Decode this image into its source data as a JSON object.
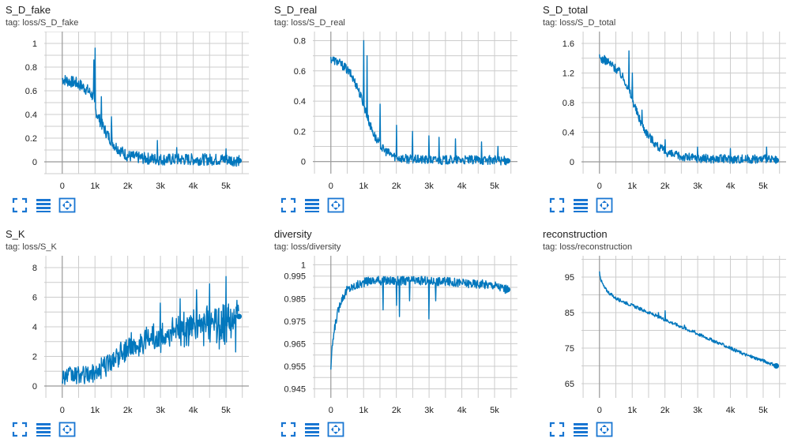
{
  "colors": {
    "line": "#0277bd",
    "grid": "#cccccc",
    "axis": "#999999",
    "tick_text": "#212121",
    "icon": "#1976d2"
  },
  "toolbar_icons": [
    "fullscreen-icon",
    "data-table-icon",
    "fit-domain-icon"
  ],
  "chart_data": [
    {
      "type": "line",
      "title": "S_D_fake",
      "tag": "tag: loss/S_D_fake",
      "xlabel": "",
      "ylabel": "",
      "x_ticks": [
        0,
        1000,
        2000,
        3000,
        4000,
        5000
      ],
      "x_tick_labels": [
        "0",
        "1k",
        "2k",
        "3k",
        "4k",
        "5k"
      ],
      "y_ticks": [
        0,
        0.2,
        0.4,
        0.6,
        0.8,
        1
      ],
      "y_tick_labels": [
        "0",
        "0.2",
        "0.4",
        "0.6",
        "0.8",
        "1"
      ],
      "xlim": [
        -550,
        5700
      ],
      "ylim": [
        -0.1,
        1.1
      ],
      "grid": true,
      "x": [
        0,
        200,
        400,
        600,
        800,
        950,
        1000,
        1100,
        1200,
        1400,
        1600,
        1800,
        2000,
        2200,
        2500,
        3000,
        3500,
        4000,
        4500,
        5000,
        5400
      ],
      "values": [
        0.7,
        0.68,
        0.67,
        0.64,
        0.6,
        0.55,
        0.45,
        0.38,
        0.32,
        0.22,
        0.14,
        0.09,
        0.05,
        0.04,
        0.03,
        0.02,
        0.02,
        0.02,
        0.02,
        0.02,
        0.01
      ],
      "noise": 0.05,
      "spikes": [
        [
          1000,
          0.96
        ],
        [
          960,
          0.86
        ],
        [
          1200,
          0.55
        ],
        [
          1500,
          0.38
        ],
        [
          2900,
          0.18
        ],
        [
          3500,
          0.12
        ],
        [
          5000,
          0.11
        ]
      ]
    },
    {
      "type": "line",
      "title": "S_D_real",
      "tag": "tag: loss/S_D_real",
      "xlabel": "",
      "ylabel": "",
      "x_ticks": [
        0,
        1000,
        2000,
        3000,
        4000,
        5000
      ],
      "x_tick_labels": [
        "0",
        "1k",
        "2k",
        "3k",
        "4k",
        "5k"
      ],
      "y_ticks": [
        0,
        0.2,
        0.4,
        0.6,
        0.8
      ],
      "y_tick_labels": [
        "0",
        "0.2",
        "0.4",
        "0.6",
        "0.8"
      ],
      "xlim": [
        -550,
        5700
      ],
      "ylim": [
        -0.08,
        0.86
      ],
      "grid": true,
      "x": [
        0,
        200,
        400,
        600,
        800,
        1000,
        1200,
        1400,
        1600,
        1800,
        2000,
        2200,
        2500,
        3000,
        3500,
        4000,
        4500,
        5000,
        5400
      ],
      "values": [
        0.68,
        0.66,
        0.63,
        0.58,
        0.5,
        0.38,
        0.24,
        0.14,
        0.08,
        0.05,
        0.03,
        0.02,
        0.015,
        0.01,
        0.01,
        0.01,
        0.01,
        0.01,
        0.005
      ],
      "noise": 0.03,
      "spikes": [
        [
          1000,
          0.8
        ],
        [
          1100,
          0.7
        ],
        [
          1500,
          0.38
        ],
        [
          2000,
          0.24
        ],
        [
          2500,
          0.2
        ],
        [
          3000,
          0.17
        ],
        [
          3300,
          0.16
        ],
        [
          3800,
          0.15
        ],
        [
          4600,
          0.13
        ],
        [
          5100,
          0.1
        ]
      ]
    },
    {
      "type": "line",
      "title": "S_D_total",
      "tag": "tag: loss/S_D_total",
      "xlabel": "",
      "ylabel": "",
      "x_ticks": [
        0,
        1000,
        2000,
        3000,
        4000,
        5000
      ],
      "x_tick_labels": [
        "0",
        "1k",
        "2k",
        "3k",
        "4k",
        "5k"
      ],
      "y_ticks": [
        0,
        0.4,
        0.8,
        1.2,
        1.6
      ],
      "y_tick_labels": [
        "0",
        "0.4",
        "0.8",
        "1.2",
        "1.6"
      ],
      "xlim": [
        -550,
        5700
      ],
      "ylim": [
        -0.16,
        1.76
      ],
      "grid": true,
      "x": [
        0,
        200,
        400,
        600,
        800,
        1000,
        1200,
        1400,
        1600,
        1800,
        2000,
        2200,
        2500,
        3000,
        3500,
        4000,
        4500,
        5000,
        5400
      ],
      "values": [
        1.4,
        1.37,
        1.3,
        1.22,
        1.08,
        0.85,
        0.6,
        0.42,
        0.3,
        0.2,
        0.14,
        0.1,
        0.07,
        0.05,
        0.04,
        0.04,
        0.04,
        0.04,
        0.02
      ],
      "noise": 0.06,
      "spikes": [
        [
          900,
          1.5
        ],
        [
          1000,
          1.2
        ],
        [
          1300,
          0.7
        ],
        [
          2000,
          0.3
        ],
        [
          3000,
          0.2
        ],
        [
          4000,
          0.18
        ],
        [
          5100,
          0.2
        ]
      ]
    },
    {
      "type": "line",
      "title": "S_K",
      "tag": "tag: loss/S_K",
      "xlabel": "",
      "ylabel": "",
      "x_ticks": [
        0,
        1000,
        2000,
        3000,
        4000,
        5000
      ],
      "x_tick_labels": [
        "0",
        "1k",
        "2k",
        "3k",
        "4k",
        "5k"
      ],
      "y_ticks": [
        0,
        2,
        4,
        6,
        8
      ],
      "y_tick_labels": [
        "0",
        "2",
        "4",
        "6",
        "8"
      ],
      "xlim": [
        -550,
        5700
      ],
      "ylim": [
        -0.8,
        8.8
      ],
      "grid": true,
      "x": [
        0,
        400,
        800,
        1000,
        1200,
        1500,
        2000,
        2500,
        3000,
        3500,
        4000,
        4500,
        5000,
        5400
      ],
      "values": [
        0.7,
        0.7,
        0.75,
        0.9,
        1.2,
        1.7,
        2.5,
        3.0,
        3.4,
        3.7,
        4.0,
        4.1,
        4.2,
        4.7
      ],
      "noise": 0.6,
      "spikes": [
        [
          5000,
          7.4
        ],
        [
          4500,
          6.9
        ],
        [
          4100,
          6.5
        ],
        [
          3600,
          5.9
        ],
        [
          3000,
          5.6
        ],
        [
          5300,
          2.3
        ],
        [
          4800,
          2.5
        ]
      ]
    },
    {
      "type": "line",
      "title": "diversity",
      "tag": "tag: loss/diversity",
      "xlabel": "",
      "ylabel": "",
      "x_ticks": [
        0,
        1000,
        2000,
        3000,
        4000,
        5000
      ],
      "x_tick_labels": [
        "0",
        "1k",
        "2k",
        "3k",
        "4k",
        "5k"
      ],
      "y_ticks": [
        0.945,
        0.955,
        0.965,
        0.975,
        0.985,
        0.995,
        1
      ],
      "y_tick_labels": [
        "0.945",
        "0.955",
        "0.965",
        "0.975",
        "0.985",
        "0.995",
        "1"
      ],
      "xlim": [
        -550,
        5700
      ],
      "ylim": [
        0.941,
        1.004
      ],
      "grid": true,
      "x": [
        0,
        50,
        150,
        300,
        500,
        800,
        1200,
        2000,
        3000,
        4000,
        5000,
        5400
      ],
      "values": [
        0.954,
        0.965,
        0.975,
        0.984,
        0.989,
        0.991,
        0.993,
        0.993,
        0.993,
        0.992,
        0.991,
        0.989
      ],
      "noise": 0.002,
      "spikes": [
        [
          1600,
          0.98
        ],
        [
          2100,
          0.977
        ],
        [
          2000,
          0.982
        ],
        [
          3000,
          0.976
        ],
        [
          3200,
          0.984
        ],
        [
          2400,
          0.984
        ]
      ]
    },
    {
      "type": "line",
      "title": "reconstruction",
      "tag": "tag: loss/reconstruction",
      "xlabel": "",
      "ylabel": "",
      "x_ticks": [
        0,
        1000,
        2000,
        3000,
        4000,
        5000
      ],
      "x_tick_labels": [
        "0",
        "1k",
        "2k",
        "3k",
        "4k",
        "5k"
      ],
      "y_ticks": [
        65,
        75,
        85,
        95
      ],
      "y_tick_labels": [
        "65",
        "75",
        "85",
        "95"
      ],
      "xlim": [
        -550,
        5700
      ],
      "ylim": [
        61,
        101
      ],
      "grid": true,
      "x": [
        0,
        50,
        150,
        300,
        500,
        1000,
        1500,
        2000,
        2500,
        3000,
        3500,
        4000,
        4500,
        5000,
        5400
      ],
      "values": [
        96.5,
        94,
        92,
        90.5,
        89,
        87,
        85,
        83,
        81,
        79,
        77,
        75,
        73,
        71.5,
        70
      ],
      "noise": 0.45,
      "spikes": [
        [
          1800,
          85
        ],
        [
          2000,
          85.5
        ],
        [
          2600,
          81.5
        ],
        [
          2900,
          80
        ]
      ]
    }
  ]
}
